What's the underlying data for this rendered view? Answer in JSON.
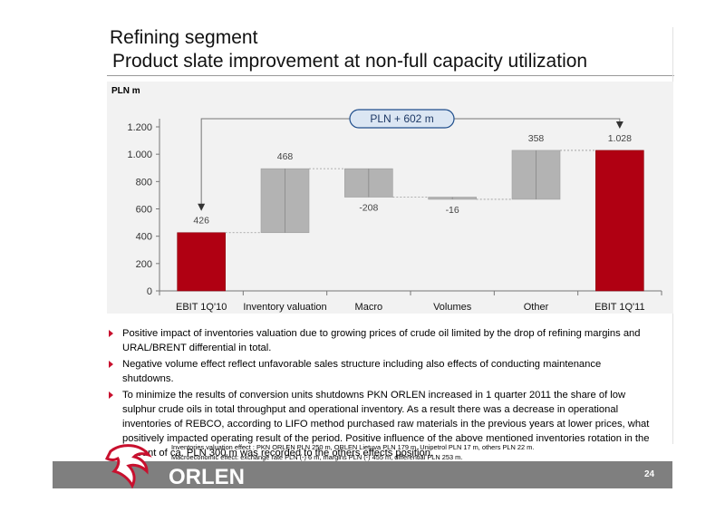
{
  "title": {
    "line1": "Refining segment",
    "line2": "Product slate improvement at non-full capacity utilization"
  },
  "unit_label": "PLN m",
  "chart_data": {
    "type": "bar",
    "subtype": "waterfall",
    "categories": [
      "EBIT 1Q'10",
      "Inventory valuation",
      "Macro",
      "Volumes",
      "Other",
      "EBIT 1Q'11"
    ],
    "values": [
      426,
      468,
      -208,
      -16,
      358,
      1028
    ],
    "value_labels": [
      "426",
      "468",
      "-208",
      "-16",
      "358",
      "1.028"
    ],
    "bar_kinds": [
      "total",
      "delta",
      "delta",
      "delta",
      "delta",
      "total"
    ],
    "ylim": [
      0,
      1200
    ],
    "yticks": [
      0,
      200,
      400,
      600,
      800,
      1000,
      1200
    ],
    "ytick_labels": [
      "0",
      "200",
      "400",
      "600",
      "800",
      "1.000",
      "1.200"
    ],
    "annotation": "PLN + 602 m",
    "colors": {
      "total": "#b00012",
      "delta": "#b3b3b3",
      "total_edge": "#8a000c",
      "delta_edge": "#9e9e9e",
      "annotation_fill": "#dbe6f3",
      "annotation_edge": "#1f4e8c"
    },
    "grid": false,
    "legend": "none"
  },
  "bullets": [
    "Positive impact of inventories valuation due to growing prices of crude oil limited by the drop of refining margins and URAL/BRENT differential in total.",
    "Negative volume effect reflect unfavorable sales structure including also effects of conducting maintenance shutdowns.",
    "To minimize the results of conversion units shutdowns PKN ORLEN increased in 1 quarter 2011 the share of low sulphur crude oils in total throughput and operational inventory. As a result there was a decrease in operational inventories of REBCO, according to LIFO method purchased raw materials in the previous years at lower prices, what positively impacted operating result of the period. Positive influence of the above mentioned inventories rotation in the amount of ca. PLN 300 m was recorded to the others effects position."
  ],
  "footnotes": [
    "Inventories valuation effect : PKN ORLEN PLN 250 m, ORLEN Lietuva PLN 179 m, Unipetrol PLN 17 m, others PLN 22 m.",
    "Macroeconomic effect: exchange rate PLN (-) 6 m, margins PLN (-) 455 m, differential PLN 253 m."
  ],
  "footer": {
    "brand": "ORLEN",
    "page_number": "24",
    "brand_color": "#c8102e",
    "bar_color": "#7f7f7f"
  }
}
